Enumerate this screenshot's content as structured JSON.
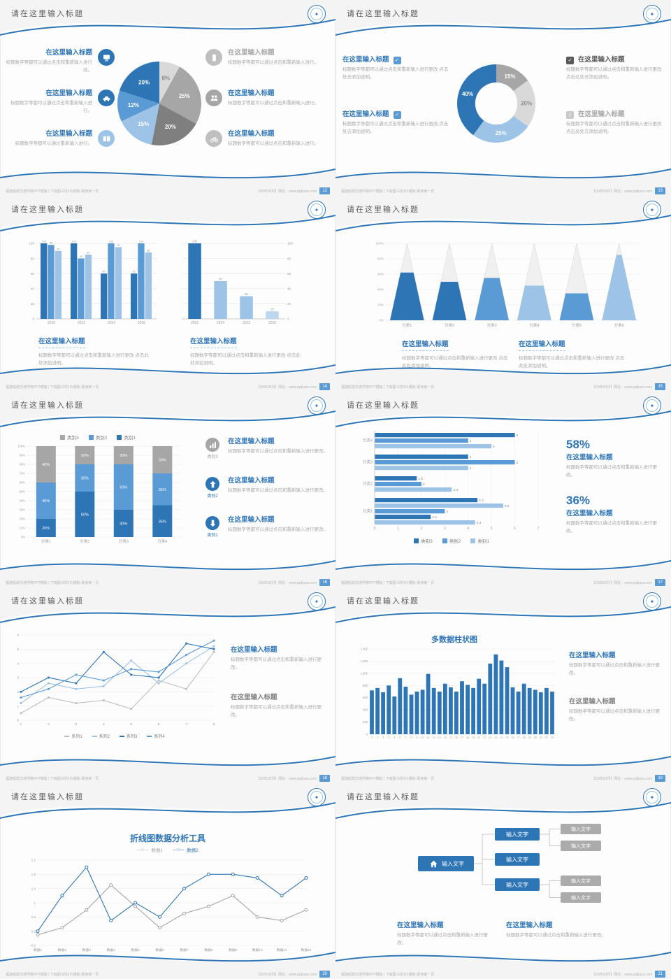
{
  "meta": {
    "slide_title": "请在这里输入标题",
    "footer_left": "福建船政交通学院PPT模板 | 下载图·E花2片模板·硬读第一页",
    "footer_right": "【09年09月】网址：www.pptjiasu.com"
  },
  "slides": [
    {
      "page": "12",
      "chart": {
        "type": "pie",
        "values": [
          8,
          25,
          20,
          15,
          12,
          20
        ],
        "labels": [
          "8%",
          "25%",
          "20%",
          "15%",
          "12%",
          "20%"
        ],
        "colors": [
          "#d9d9d9",
          "#a6a6a6",
          "#7f7f7f",
          "#9dc3e6",
          "#5b9bd5",
          "#2e75b6"
        ],
        "label_colors": [
          "#8c8c8c",
          "#ffffff",
          "#ffffff",
          "#ffffff",
          "#ffffff",
          "#ffffff"
        ]
      },
      "left_items": [
        {
          "title": "在这里输入标题",
          "text": "标题数字等都可以通过点击和重新输入进行改。",
          "icon_bg": "#2e75b6"
        },
        {
          "title": "在这里输入标题",
          "text": "标题数字等都可以通过点击和重新输入进行。",
          "icon_bg": "#2e75b6"
        },
        {
          "title": "在这里输入标题",
          "text": "标题数字等都可以通过重新输入进行。",
          "icon_bg": "#9dc3e6"
        }
      ],
      "right_items": [
        {
          "title": "在这里输入标题",
          "title_color": "#a6a6a6",
          "text": "标题数字等都可以通过点击和重新输入进行。",
          "icon_bg": "#bfbfbf"
        },
        {
          "title": "在这里输入标题",
          "title_color": "#2e75b6",
          "text": "标题数字等都可以通过点击和重新输入进行。",
          "icon_bg": "#a6a6a6"
        },
        {
          "title": "在这里输入标题",
          "title_color": "#2e75b6",
          "text": "标题数字等都可以通过点击和重新输入进行。",
          "icon_bg": "#bfbfbf"
        }
      ]
    },
    {
      "page": "13",
      "chart": {
        "type": "donut",
        "values": [
          15,
          20,
          25,
          40
        ],
        "labels": [
          "15%",
          "20%",
          "25%",
          "40%"
        ],
        "colors": [
          "#a6a6a6",
          "#d9d9d9",
          "#9dc3e6",
          "#2e75b6"
        ],
        "label_colors": [
          "#ffffff",
          "#8c8c8c",
          "#ffffff",
          "#ffffff"
        ]
      },
      "left_groups": [
        {
          "title": "在这里输入标题",
          "title_color": "#2e75b6",
          "check_bg": "#5b9bd5",
          "text": "标题数字等都可以通过点击和重新输入进行更改 点击处去添加说明。"
        },
        {
          "title": "在这里输入标题",
          "title_color": "#2e75b6",
          "check_bg": "#5b9bd5",
          "text": "标题数字等都可以通过点击和重新输入进行更改 点击处去添加说明。"
        }
      ],
      "right_groups": [
        {
          "title": "在这里输入标题",
          "title_color": "#595959",
          "check_bg": "#595959",
          "text": "标题数字等都可以通过点击和重新输入进行更改 点击此处去添加说明。"
        },
        {
          "title": "在这里输入标题",
          "title_color": "#a6a6a6",
          "check_bg": "#c9c9c9",
          "text": "标题数字等都可以通过点击和重新输入进行更改 点击此处去添加说明。"
        }
      ]
    },
    {
      "page": "14",
      "chart": {
        "type": "groupbar",
        "categories": [
          "2010",
          "2012",
          "2014",
          "2016"
        ],
        "series": [
          [
            100,
            100,
            60,
            60
          ],
          [
            98,
            80,
            100,
            100
          ],
          [
            90,
            85,
            95,
            88
          ]
        ],
        "colors": [
          "#2e75b6",
          "#5b9bd5",
          "#9dc3e6"
        ],
        "ymax": 100,
        "yticks": [
          0,
          20,
          40,
          60,
          80,
          100
        ]
      },
      "chart2": {
        "type": "bar",
        "categories": [
          "2016",
          "2014",
          "2012",
          "2010"
        ],
        "values": [
          100,
          50,
          30,
          10
        ],
        "colors": [
          "#2e75b6",
          "#9dc3e6",
          "#9dc3e6",
          "#bdd7ee"
        ],
        "ymax": 100,
        "yticks": [
          0,
          20,
          40,
          60,
          80,
          100
        ],
        "axis": "right"
      },
      "blocks": [
        {
          "title": "在这里输入标题",
          "text": "标题数字等都可以通过点击和重新输入进行更改 点击此处添加说明。"
        },
        {
          "title": "在这里输入标题",
          "text": "标题数字等都可以通过点击和重新输入进行更改 点击此处添加说明。"
        }
      ]
    },
    {
      "page": "15",
      "chart": {
        "type": "pyramid",
        "categories": [
          "分类1",
          "分类2",
          "分类3",
          "分类4",
          "分类5",
          "分类6"
        ],
        "fills": [
          0.62,
          0.5,
          0.55,
          0.45,
          0.35,
          0.85
        ],
        "colors": [
          "#2e75b6",
          "#2e75b6",
          "#5b9bd5",
          "#9dc3e6",
          "#5b9bd5",
          "#9dc3e6"
        ],
        "yticks": [
          "0%",
          "20%",
          "40%",
          "60%",
          "80%",
          "100%"
        ]
      },
      "blocks": [
        {
          "title": "在这里输入标题",
          "text": "标题数字等都可以通过点击和重新输入进行更改 点击此处添加说明。"
        },
        {
          "title": "在这里输入标题",
          "text": "标题数字等都可以通过点击和重新输入进行更改 点击此处添加说明。"
        }
      ]
    },
    {
      "page": "16",
      "chart": {
        "type": "stack",
        "categories": [
          "分类1",
          "分类2",
          "分类3",
          "分类4"
        ],
        "series": [
          {
            "name": "类别1",
            "color": "#2e75b6",
            "values": [
              20,
              50,
              30,
              35
            ]
          },
          {
            "name": "类别2",
            "color": "#5b9bd5",
            "values": [
              40,
              30,
              50,
              35
            ]
          },
          {
            "name": "类别3",
            "color": "#a6a6a6",
            "values": [
              40,
              20,
              20,
              30
            ]
          }
        ]
      },
      "rows": [
        {
          "cat": "类别3",
          "cat_color": "#a6a6a6",
          "icon_bg": "#a6a6a6",
          "title": "在这里输入标题",
          "text": "标题数字等都可以通过点击和重新输入进行更改。"
        },
        {
          "cat": "类别2",
          "cat_color": "#2e75b6",
          "icon_bg": "#2e75b6",
          "title": "在这里输入标题",
          "text": "标题数字等都可以通过点击和重新输入进行更改。"
        },
        {
          "cat": "类别1",
          "cat_color": "#2e75b6",
          "icon_bg": "#2e75b6",
          "title": "在这里输入标题",
          "text": "标题数字等都可以通过点击和重新输入进行更改。"
        }
      ]
    },
    {
      "page": "17",
      "chart": {
        "type": "hbar",
        "xmax": 7,
        "xticks": [
          0,
          1,
          2,
          3,
          4,
          5,
          6,
          7
        ],
        "groups": [
          {
            "label": "分类4",
            "bars": [
              {
                "v": 6,
                "c": "#2e75b6"
              },
              {
                "v": 4,
                "c": "#5b9bd5"
              },
              {
                "v": 5,
                "c": "#9dc3e6"
              }
            ]
          },
          {
            "label": "分类3",
            "bars": [
              {
                "v": 4,
                "c": "#2e75b6"
              },
              {
                "v": 6,
                "c": "#5b9bd5"
              },
              {
                "v": 4,
                "c": "#9dc3e6"
              }
            ]
          },
          {
            "label": "分类2",
            "bars": [
              {
                "v": 1.8,
                "c": "#2e75b6"
              },
              {
                "v": 2,
                "c": "#5b9bd5"
              },
              {
                "v": 3.3,
                "c": "#9dc3e6"
              }
            ]
          },
          {
            "label": "分类1",
            "bars": [
              {
                "v": 4.4,
                "c": "#2e75b6"
              },
              {
                "v": 5.5,
                "c": "#9dc3e6"
              },
              {
                "v": 3,
                "c": "#5b9bd5"
              },
              {
                "v": 2.4,
                "c": "#2e75b6"
              },
              {
                "v": 4.3,
                "c": "#9dc3e6"
              }
            ]
          }
        ],
        "legend": [
          {
            "name": "类别3",
            "color": "#2e75b6"
          },
          {
            "name": "类别2",
            "color": "#5b9bd5"
          },
          {
            "name": "类别1",
            "color": "#9dc3e6"
          }
        ]
      },
      "stats": [
        {
          "value": "58%",
          "title": "在这里输入标题",
          "text": "标题数字等都可以通过点击和重新输入进行更改。"
        },
        {
          "value": "36%",
          "title": "在这里输入标题",
          "text": "标题数字等都可以通过点击和重新输入进行更改。"
        }
      ]
    },
    {
      "page": "18",
      "chart": {
        "type": "line",
        "x": [
          1,
          2,
          3,
          4,
          5,
          6,
          7,
          8
        ],
        "ymax": 6,
        "yticks": [
          0,
          1,
          2,
          3,
          4,
          5,
          6
        ],
        "series": [
          {
            "name": "系列1",
            "color": "#bfbfbf",
            "values": [
              0.5,
              1.6,
              1.2,
              1.4,
              0.8,
              2.8,
              2.2,
              4.8
            ]
          },
          {
            "name": "系列2",
            "color": "#9dc3e6",
            "values": [
              1.2,
              2.6,
              2.2,
              2.4,
              4.2,
              2.6,
              4.0,
              5.2
            ]
          },
          {
            "name": "系列3",
            "color": "#2e75b6",
            "values": [
              2.0,
              3.0,
              2.6,
              4.8,
              3.2,
              3.0,
              5.4,
              5.0
            ]
          },
          {
            "name": "系列4",
            "color": "#5b9bd5",
            "values": [
              1.6,
              2.2,
              3.2,
              2.8,
              3.6,
              3.4,
              4.6,
              5.6
            ]
          }
        ]
      },
      "blocks": [
        {
          "title": "在这里输入标题",
          "title_color": "#2e75b6",
          "text": "标题数字等都可以通过点击和重新输入进行更改。"
        },
        {
          "title": "在这里输入标题",
          "title_color": "#7f7f7f",
          "text": "标题数字等都可以通过点击和重新输入进行更改。"
        }
      ]
    },
    {
      "page": "19",
      "chart_title": "多数据柱状图",
      "chart": {
        "type": "columns",
        "color": "#2e75b6",
        "ymax": 1400,
        "yticks": [
          0,
          200,
          400,
          600,
          800,
          1000,
          1200,
          1400
        ],
        "values": [
          720,
          760,
          690,
          800,
          620,
          920,
          780,
          650,
          700,
          730,
          990,
          760,
          700,
          830,
          770,
          700,
          870,
          810,
          760,
          910,
          830,
          1160,
          1310,
          1210,
          1100,
          770,
          700,
          830,
          760,
          730,
          690,
          760,
          700
        ]
      },
      "blocks": [
        {
          "title": "在这里输入标题",
          "title_color": "#2e75b6",
          "text": "标题数字等都可以通过点击和重新输入进行更改。"
        },
        {
          "title": "在这里输入标题",
          "title_color": "#7f7f7f",
          "text": "标题数字等都可以通过点击和重新输入进行更改。"
        }
      ]
    },
    {
      "page": "20",
      "chart_title": "折线图数据分析工具",
      "chart": {
        "type": "line2",
        "ymin": -0.2,
        "ymax": 2.2,
        "yticks": [
          -0.2,
          0.2,
          0.6,
          1,
          1.4,
          1.8,
          2.2
        ],
        "categories": [
          "数据1",
          "数据2",
          "数据3",
          "数据4",
          "数据5",
          "数据6",
          "数据7",
          "数据8",
          "数据9",
          "数据10",
          "数据11",
          "数据12"
        ],
        "series": [
          {
            "name": "数据1",
            "color": "#a6a6a6",
            "values": [
              0.1,
              0.3,
              0.8,
              1.5,
              0.9,
              0.3,
              0.7,
              0.9,
              1.2,
              0.6,
              0.5,
              0.8
            ]
          },
          {
            "name": "数据2",
            "color": "#2e75b6",
            "values": [
              0.2,
              1.2,
              2.0,
              0.5,
              1.0,
              0.6,
              1.4,
              1.8,
              1.8,
              1.7,
              1.2,
              1.7
            ]
          }
        ]
      }
    },
    {
      "page": "21",
      "home_label": "输入文字",
      "mid_boxes": [
        "输入文字",
        "输入文字",
        "输入文字"
      ],
      "gray_boxes": [
        "输入文字",
        "输入文字",
        "输入文字",
        "输入文字"
      ],
      "blocks": [
        {
          "title": "在这里输入标题",
          "text": "标题数字等都可以通过点击和重新输入进行更改。"
        },
        {
          "title": "在这里输入标题",
          "text": "标题数字等都可以通过点击和重新输入进行更改。"
        }
      ]
    }
  ]
}
